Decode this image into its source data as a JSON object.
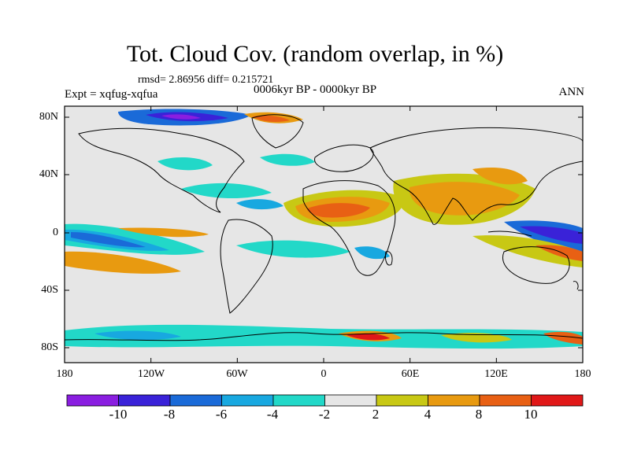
{
  "title": "Tot. Cloud Cov. (random overlap, in %)",
  "stats": "rmsd= 2.86956 diff= 0.215721",
  "experiment": "Expt = xqfug-xqfua",
  "period": "0006kyr BP - 0000kyr BP",
  "season": "ANN",
  "lat_labels": [
    "80N",
    "40N",
    "0",
    "40S",
    "80S"
  ],
  "lon_labels": [
    "180",
    "120W",
    "60W",
    "0",
    "60E",
    "120E",
    "180"
  ],
  "colorbar": {
    "labels": [
      "-10",
      "-8",
      "-6",
      "-4",
      "-2",
      "2",
      "4",
      "8",
      "10"
    ],
    "colors": [
      "#8a1ee0",
      "#3a22d8",
      "#1a6ad8",
      "#18a8e0",
      "#22d8c8",
      "#e6e6e6",
      "#c8c814",
      "#e89a10",
      "#e86014",
      "#e01818"
    ]
  },
  "map_colors": {
    "neutral": "#e6e6e6",
    "coast": "#000000"
  }
}
